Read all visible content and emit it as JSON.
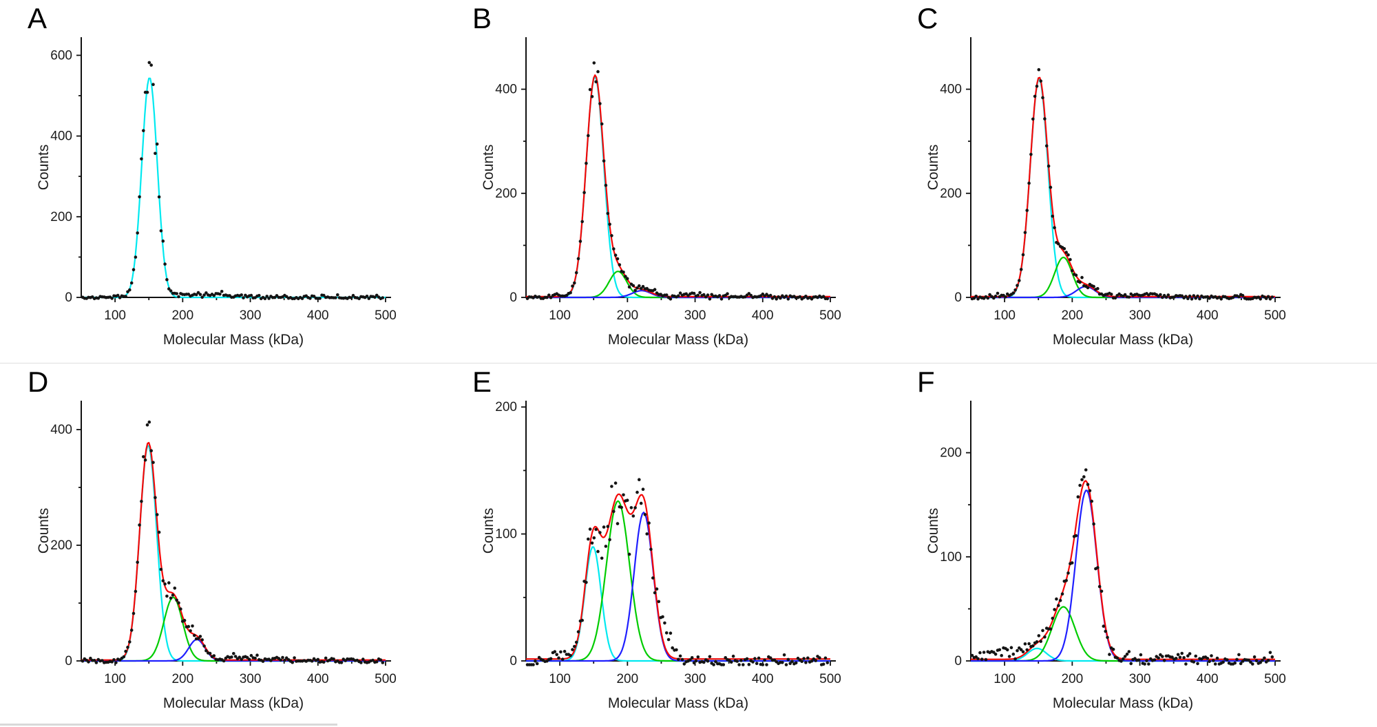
{
  "page": {
    "background": "#ffffff",
    "row_divider_color": "#dedede",
    "bottom_divider_color": "#d9d9d9"
  },
  "chart_data": [
    {
      "label": "A",
      "type": "scatter",
      "xlabel": "Molecular Mass (kDa)",
      "ylabel": "Counts",
      "xlim": [
        50,
        500
      ],
      "ylim": [
        0,
        645
      ],
      "xticks": [
        100,
        200,
        300,
        400,
        500
      ],
      "xminor": [
        150,
        250,
        350,
        450
      ],
      "yticks": [
        0,
        200,
        400,
        600
      ],
      "yminor": [
        100,
        300,
        500
      ],
      "grid": false,
      "legend": null,
      "scatter_color": "#141414",
      "fit_components": [
        {
          "name": "single-species-fit",
          "color": "#00e9f0",
          "center": 151,
          "amplitude": 545,
          "sigma": 11.5
        }
      ],
      "composite_fit": null,
      "scatter_model": {
        "dx": 2.9,
        "seed": 7,
        "base_noise": 2.6,
        "rel_noise": 0.055,
        "extra_peaks": [
          {
            "center": 237,
            "amplitude": 8,
            "sigma": 40
          }
        ]
      }
    },
    {
      "label": "B",
      "type": "scatter",
      "xlabel": "Molecular Mass (kDa)",
      "ylabel": "Counts",
      "xlim": [
        50,
        500
      ],
      "ylim": [
        0,
        500
      ],
      "xticks": [
        100,
        200,
        300,
        400,
        500
      ],
      "xminor": [
        150,
        250,
        350,
        450
      ],
      "yticks": [
        0,
        200,
        400
      ],
      "yminor": [
        100,
        300
      ],
      "grid": false,
      "legend": null,
      "scatter_color": "#141414",
      "fit_components": [
        {
          "name": "species-1-fit",
          "color": "#00e9f0",
          "center": 152,
          "amplitude": 424,
          "sigma": 13
        },
        {
          "name": "species-2-fit",
          "color": "#00cc00",
          "center": 186,
          "amplitude": 50,
          "sigma": 13
        },
        {
          "name": "species-3-fit",
          "color": "#1f1fff",
          "center": 221,
          "amplitude": 13,
          "sigma": 14
        }
      ],
      "composite_fit": {
        "name": "total-fit",
        "color": "#f40808",
        "baseline": 1.5
      },
      "scatter_model": {
        "dx": 2.9,
        "seed": 13,
        "base_noise": 2.6,
        "rel_noise": 0.045,
        "extra_peaks": [
          {
            "center": 285,
            "amplitude": 4,
            "sigma": 55
          },
          {
            "center": 95,
            "amplitude": 5,
            "sigma": 9
          }
        ]
      }
    },
    {
      "label": "C",
      "type": "scatter",
      "xlabel": "Molecular Mass (kDa)",
      "ylabel": "Counts",
      "xlim": [
        50,
        500
      ],
      "ylim": [
        0,
        500
      ],
      "xticks": [
        100,
        200,
        300,
        400,
        500
      ],
      "xminor": [
        150,
        250,
        350,
        450
      ],
      "yticks": [
        0,
        200,
        400
      ],
      "yminor": [
        100,
        300
      ],
      "grid": false,
      "legend": null,
      "scatter_color": "#141414",
      "fit_components": [
        {
          "name": "species-1-fit",
          "color": "#00e9f0",
          "center": 151,
          "amplitude": 420,
          "sigma": 13
        },
        {
          "name": "species-2-fit",
          "color": "#00cc00",
          "center": 187,
          "amplitude": 77,
          "sigma": 13
        },
        {
          "name": "species-3-fit",
          "color": "#1f1fff",
          "center": 220,
          "amplitude": 21,
          "sigma": 14
        }
      ],
      "composite_fit": {
        "name": "total-fit",
        "color": "#f40808",
        "baseline": 1.5
      },
      "scatter_model": {
        "dx": 2.9,
        "seed": 21,
        "base_noise": 2.6,
        "rel_noise": 0.045,
        "extra_peaks": [
          {
            "center": 285,
            "amplitude": 5,
            "sigma": 50
          },
          {
            "center": 96,
            "amplitude": 5,
            "sigma": 9
          }
        ]
      }
    },
    {
      "label": "D",
      "type": "scatter",
      "xlabel": "Molecular Mass (kDa)",
      "ylabel": "Counts",
      "xlim": [
        50,
        500
      ],
      "ylim": [
        0,
        450
      ],
      "xticks": [
        100,
        200,
        300,
        400,
        500
      ],
      "xminor": [
        150,
        250,
        350,
        450
      ],
      "yticks": [
        0,
        200,
        400
      ],
      "yminor": [
        100,
        300
      ],
      "grid": false,
      "legend": null,
      "scatter_color": "#141414",
      "fit_components": [
        {
          "name": "species-1-fit",
          "color": "#00e9f0",
          "center": 149,
          "amplitude": 373,
          "sigma": 12.5
        },
        {
          "name": "species-2-fit",
          "color": "#00cc00",
          "center": 186,
          "amplitude": 110,
          "sigma": 14
        },
        {
          "name": "species-3-fit",
          "color": "#1f1fff",
          "center": 221,
          "amplitude": 37,
          "sigma": 12
        }
      ],
      "composite_fit": {
        "name": "total-fit",
        "color": "#f40808",
        "baseline": 1.5
      },
      "scatter_model": {
        "dx": 2.9,
        "seed": 33,
        "base_noise": 2.6,
        "rel_noise": 0.05,
        "extra_peaks": [
          {
            "center": 295,
            "amplitude": 5,
            "sigma": 45
          }
        ]
      }
    },
    {
      "label": "E",
      "type": "scatter",
      "xlabel": "Molecular Mass (kDa)",
      "ylabel": "Counts",
      "xlim": [
        50,
        500
      ],
      "ylim": [
        0,
        205
      ],
      "xticks": [
        100,
        200,
        300,
        400,
        500
      ],
      "xminor": [
        150,
        250,
        350,
        450
      ],
      "yticks": [
        0,
        100,
        200
      ],
      "yminor": [
        50,
        150
      ],
      "grid": false,
      "legend": null,
      "scatter_color": "#141414",
      "fit_components": [
        {
          "name": "species-1-fit",
          "color": "#00e9f0",
          "center": 149,
          "amplitude": 90,
          "sigma": 12
        },
        {
          "name": "species-2-fit",
          "color": "#00cc00",
          "center": 186,
          "amplitude": 126,
          "sigma": 17
        },
        {
          "name": "species-3-fit",
          "color": "#1f1fff",
          "center": 224,
          "amplitude": 117,
          "sigma": 14
        }
      ],
      "composite_fit": {
        "name": "total-fit",
        "color": "#f40808",
        "baseline": 1.5
      },
      "scatter_model": {
        "dx": 2.9,
        "seed": 41,
        "base_noise": 2.6,
        "rel_noise": 0.075,
        "extra_peaks": [
          {
            "center": 258,
            "amplitude": 14,
            "sigma": 10
          },
          {
            "center": 102,
            "amplitude": 6,
            "sigma": 14
          }
        ]
      }
    },
    {
      "label": "F",
      "type": "scatter",
      "xlabel": "Molecular Mass (kDa)",
      "ylabel": "Counts",
      "xlim": [
        50,
        500
      ],
      "ylim": [
        0,
        250
      ],
      "xticks": [
        100,
        200,
        300,
        400,
        500
      ],
      "xminor": [
        150,
        250,
        350,
        450
      ],
      "yticks": [
        0,
        100,
        200
      ],
      "yminor": [
        50,
        150
      ],
      "grid": false,
      "legend": null,
      "scatter_color": "#141414",
      "fit_components": [
        {
          "name": "species-1-fit",
          "color": "#00e9f0",
          "center": 148,
          "amplitude": 12,
          "sigma": 14
        },
        {
          "name": "species-2-fit",
          "color": "#00cc00",
          "center": 187,
          "amplitude": 52,
          "sigma": 17
        },
        {
          "name": "species-3-fit",
          "color": "#1f1fff",
          "center": 221,
          "amplitude": 164,
          "sigma": 15.5
        }
      ],
      "composite_fit": {
        "name": "total-fit",
        "color": "#f40808",
        "baseline": 1.5
      },
      "scatter_model": {
        "dx": 2.9,
        "seed": 55,
        "base_noise": 3,
        "rel_noise": 0.065,
        "extra_peaks": [
          {
            "center": 105,
            "amplitude": 9,
            "sigma": 35
          },
          {
            "center": 330,
            "amplitude": 3.5,
            "sigma": 45
          }
        ]
      }
    }
  ]
}
